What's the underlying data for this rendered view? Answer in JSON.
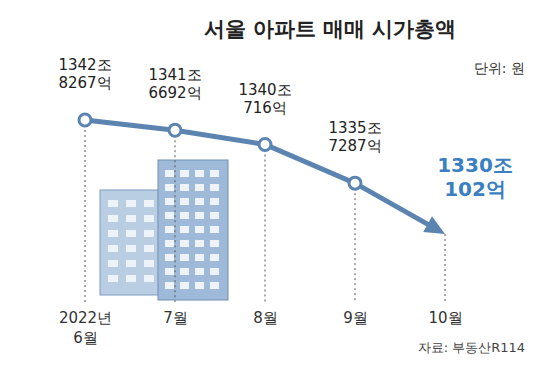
{
  "chart_data": {
    "type": "line",
    "title": "서울 아파트 매매 시가총액",
    "subtitle": "단위: 원",
    "source": "자료: 부동산R114",
    "categories": [
      "2022년 6월",
      "7월",
      "8월",
      "9월",
      "10월"
    ],
    "values": [
      1342.8267,
      1341.6692,
      1340.0716,
      1335.7287,
      1330.0102
    ],
    "value_labels": [
      "1342조 8267억",
      "1341조 6692억",
      "1340조 716억",
      "1335조 7287억",
      "1330조 102억"
    ],
    "color": "#5b84b1",
    "marker": "circle",
    "data_labels": true,
    "tick_labels": "x",
    "grid": false
  }
}
